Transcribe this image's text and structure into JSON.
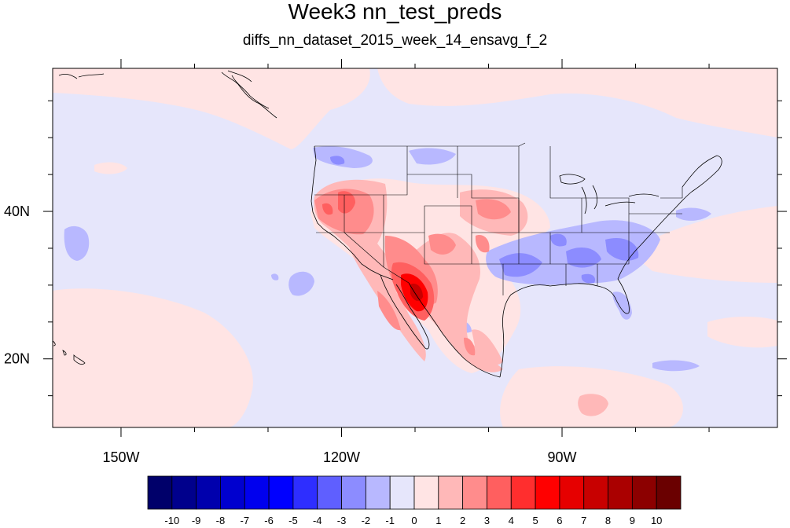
{
  "title": "Week3 nn_test_preds",
  "subtitle": "diffs_nn_dataset_2015_week_14_ensavg_f_2",
  "axes": {
    "lon_ticks": [
      {
        "label": "150W",
        "lon": -150
      },
      {
        "label": "120W",
        "lon": -120
      },
      {
        "label": "90W",
        "lon": -90
      }
    ],
    "lat_ticks": [
      {
        "label": "40N",
        "lat": 40
      },
      {
        "label": "20N",
        "lat": 20
      }
    ],
    "lon_range": [
      -159.3,
      -60.7
    ],
    "lat_range": [
      10.7,
      59.4
    ]
  },
  "colorbar": {
    "labels": [
      "-10",
      "-9",
      "-8",
      "-7",
      "-6",
      "-5",
      "-4",
      "-3",
      "-2",
      "-1",
      "0",
      "1",
      "2",
      "3",
      "4",
      "5",
      "6",
      "7",
      "8",
      "9",
      "10"
    ],
    "colors": [
      "#00006a",
      "#00008c",
      "#0000ad",
      "#0000cf",
      "#0000ee",
      "#0000ff",
      "#2e2eff",
      "#5f5fff",
      "#8c8cff",
      "#b8b8ff",
      "#e6e6fb",
      "#ffe4e4",
      "#ffb8b8",
      "#ff8c8c",
      "#ff5f5f",
      "#ff2e2e",
      "#ff0000",
      "#e60000",
      "#c80000",
      "#aa0000",
      "#8c0000",
      "#6a0000"
    ]
  },
  "colors": {
    "background_field": "#e6e6fb",
    "boundary_lines": "#000000"
  }
}
